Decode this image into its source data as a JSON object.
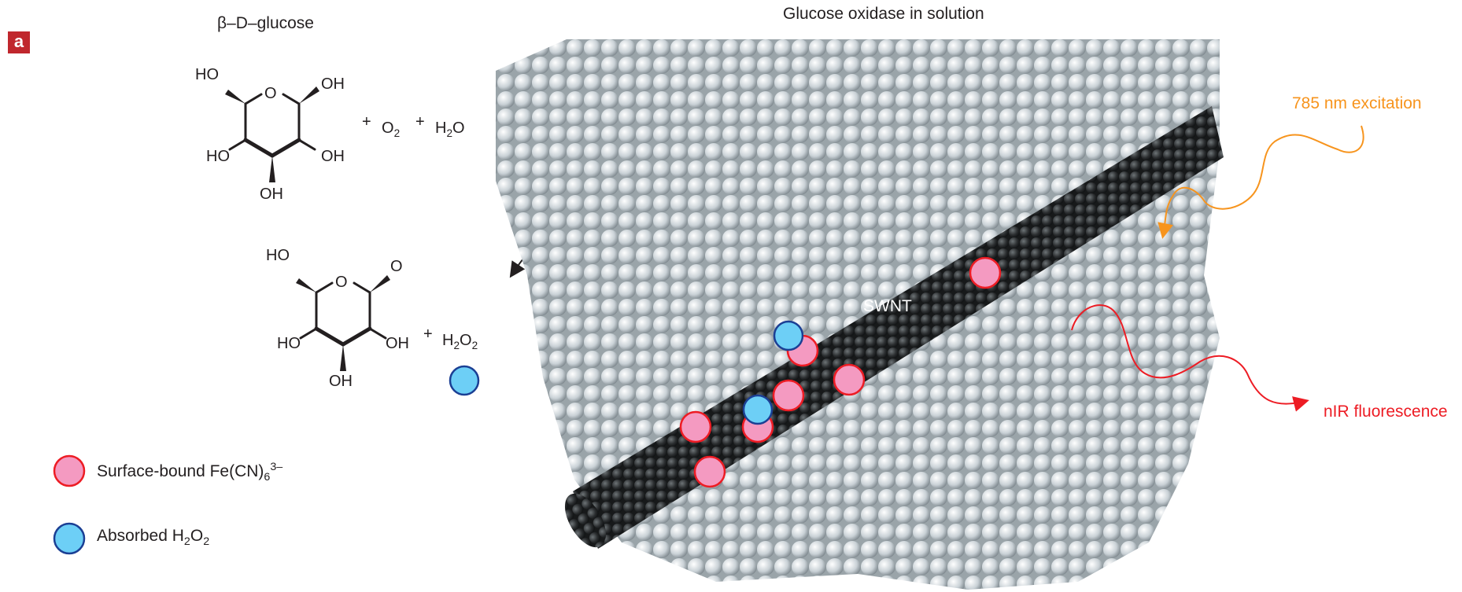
{
  "panel_label": "a",
  "titles": {
    "glucose": "β–D–glucose",
    "enzyme": "Glucose oxidase in solution"
  },
  "molecule1": {
    "atoms": {
      "ho_top_left": "HO",
      "ring_o": "O",
      "oh_top_right": "OH",
      "ho_mid_left": "HO",
      "oh_mid_right": "OH",
      "oh_bottom": "OH"
    },
    "plus1": "+",
    "o2_main": "O",
    "o2_sub": "2",
    "plus2": "+",
    "h2o_h": "H",
    "h2o_sub": "2",
    "h2o_o": "O"
  },
  "molecule2": {
    "atoms": {
      "ho_top_left": "HO",
      "ring_o": "O",
      "o_top_right": "O",
      "ho_mid_left": "HO",
      "oh_mid_right": "OH",
      "oh_bottom": "OH"
    },
    "plus": "+",
    "h2o2_h": "H",
    "h2o2_sub1": "2",
    "h2o2_o": "O",
    "h2o2_sub2": "2"
  },
  "legend": {
    "item1": {
      "text": "Surface-bound Fe(CN)",
      "sub": "6",
      "sup": "3–",
      "color": "#f49ac1",
      "stroke": "#ed1c24"
    },
    "item2": {
      "text_a": "Absorbed H",
      "sub1": "2",
      "text_b": "O",
      "sub2": "2",
      "color": "#6dcff6",
      "stroke": "#1b3f94"
    }
  },
  "labels": {
    "swnt": "SWNT",
    "excitation": "785 nm excitation",
    "fluorescence": "nIR fluorescence"
  },
  "colors": {
    "panel_label": "#c0272d",
    "excitation": "#f7941d",
    "fluorescence": "#ed1c24",
    "protein": "#c6ced3",
    "nanotube": "#2b2e30"
  }
}
